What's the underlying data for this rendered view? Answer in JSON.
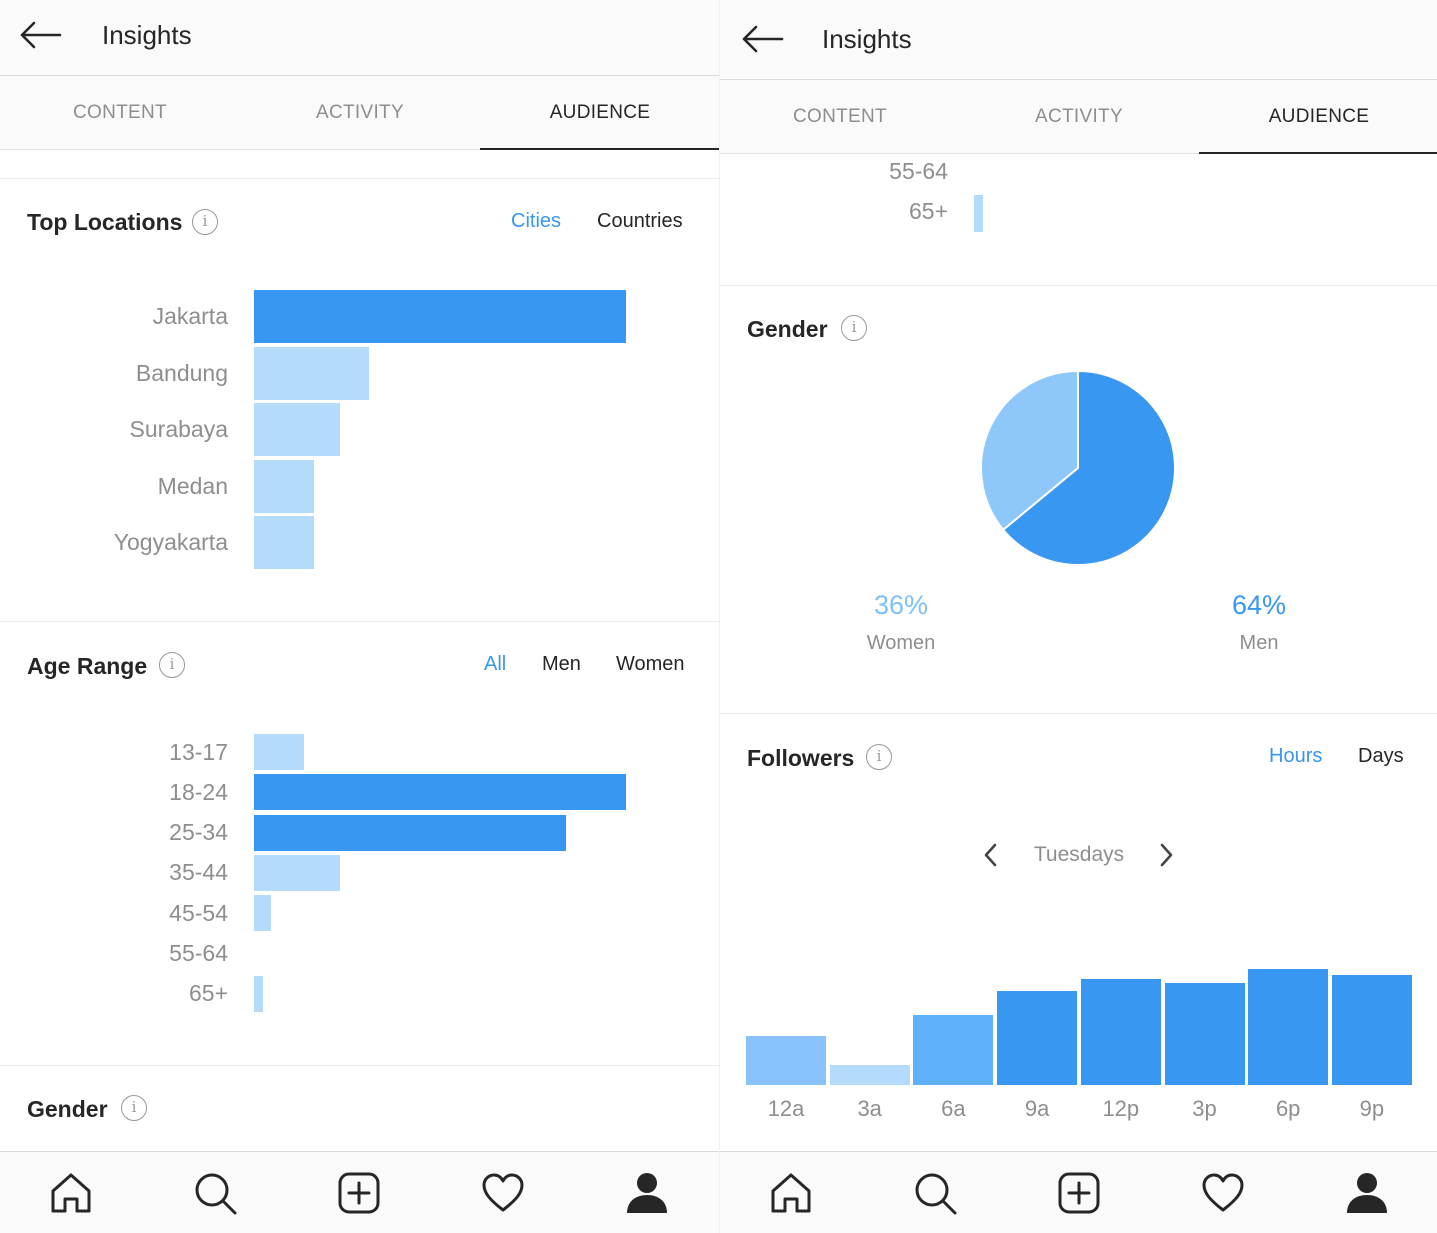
{
  "app": {
    "title": "Insights"
  },
  "tabs": [
    "CONTENT",
    "ACTIVITY",
    "AUDIENCE"
  ],
  "active_tab": "AUDIENCE",
  "top_locations": {
    "title": "Top Locations",
    "filters": [
      "Cities",
      "Countries"
    ],
    "active_filter": "Cities",
    "chart_data": {
      "type": "bar",
      "orientation": "horizontal",
      "categories": [
        "Jakarta",
        "Bandung",
        "Surabaya",
        "Medan",
        "Yogyakarta"
      ],
      "values": [
        100,
        31,
        23,
        16,
        16
      ],
      "colors": [
        "#3897f0",
        "#b4dafc",
        "#b4dafc",
        "#b4dafc",
        "#b4dafc"
      ]
    }
  },
  "age_range": {
    "title": "Age Range",
    "filters": [
      "All",
      "Men",
      "Women"
    ],
    "active_filter": "All",
    "chart_data": {
      "type": "bar",
      "orientation": "horizontal",
      "categories": [
        "13-17",
        "18-24",
        "25-34",
        "35-44",
        "45-54",
        "55-64",
        "65+"
      ],
      "values": [
        13.5,
        100,
        84,
        23,
        4.5,
        0,
        2.5
      ],
      "colors": [
        "#b4dafc",
        "#3897f0",
        "#3897f0",
        "#b4dafc",
        "#b4dafc",
        "#b4dafc",
        "#b4dafc"
      ]
    }
  },
  "gender": {
    "title": "Gender",
    "chart_data": {
      "type": "pie",
      "categories": [
        "Women",
        "Men"
      ],
      "values": [
        36,
        64
      ],
      "labels": [
        "36%",
        "64%"
      ],
      "colors": [
        "#8ec8fb",
        "#3897f0"
      ]
    }
  },
  "followers": {
    "title": "Followers",
    "filters": [
      "Hours",
      "Days"
    ],
    "active_filter": "Hours",
    "day": "Tuesdays",
    "chart_data": {
      "type": "bar",
      "categories": [
        "12a",
        "3a",
        "6a",
        "9a",
        "12p",
        "3p",
        "6p",
        "9p"
      ],
      "values": [
        42,
        17,
        60,
        81,
        91,
        88,
        100,
        95
      ],
      "colors": [
        "#88c3fb",
        "#b4dafc",
        "#5eb0fa",
        "#3897f0",
        "#3897f0",
        "#3897f0",
        "#3897f0",
        "#3897f0"
      ]
    }
  },
  "nav": [
    "home-icon",
    "search-icon",
    "new-post-icon",
    "activity-heart-icon",
    "profile-icon"
  ],
  "colors": {
    "accent": "#3897f0",
    "light_bar": "#b4dafc",
    "text": "#262626",
    "muted": "#8e8e8e"
  }
}
